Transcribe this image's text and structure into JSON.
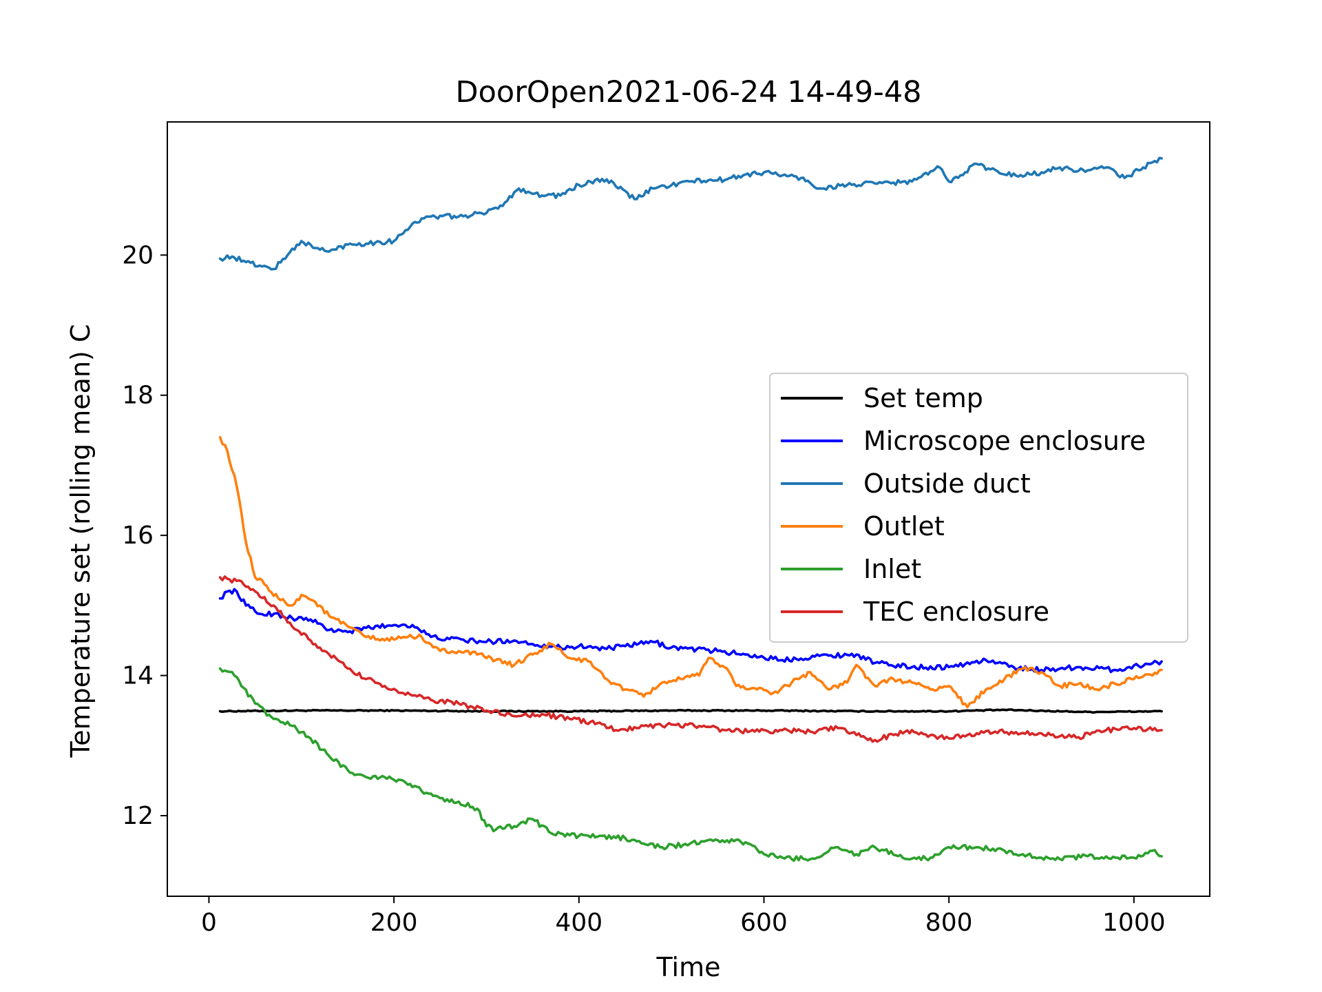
{
  "chart_data": {
    "type": "line",
    "title": "DoorOpen2021-06-24 14-49-48",
    "xlabel": "Time",
    "ylabel": "Temperature set (rolling mean) C",
    "xlim": [
      -45,
      1082
    ],
    "ylim": [
      10.85,
      21.9
    ],
    "xticks": [
      0,
      200,
      400,
      600,
      800,
      1000
    ],
    "yticks": [
      12,
      14,
      16,
      18,
      20
    ],
    "grid": false,
    "legend_position": "center-right",
    "series": [
      {
        "name": "Set temp",
        "color": "#000000",
        "points": [
          [
            12,
            13.49
          ],
          [
            100,
            13.5
          ],
          [
            200,
            13.5
          ],
          [
            300,
            13.49
          ],
          [
            400,
            13.49
          ],
          [
            500,
            13.5
          ],
          [
            600,
            13.5
          ],
          [
            700,
            13.49
          ],
          [
            800,
            13.49
          ],
          [
            860,
            13.51
          ],
          [
            950,
            13.48
          ],
          [
            1030,
            13.49
          ]
        ]
      },
      {
        "name": "Microscope enclosure",
        "color": "#0000ff",
        "points": [
          [
            12,
            15.1
          ],
          [
            20,
            15.2
          ],
          [
            30,
            15.2
          ],
          [
            40,
            15.0
          ],
          [
            55,
            14.88
          ],
          [
            70,
            14.88
          ],
          [
            90,
            14.82
          ],
          [
            110,
            14.8
          ],
          [
            130,
            14.65
          ],
          [
            150,
            14.62
          ],
          [
            170,
            14.68
          ],
          [
            200,
            14.72
          ],
          [
            220,
            14.72
          ],
          [
            240,
            14.55
          ],
          [
            260,
            14.52
          ],
          [
            300,
            14.48
          ],
          [
            330,
            14.5
          ],
          [
            350,
            14.45
          ],
          [
            380,
            14.4
          ],
          [
            400,
            14.42
          ],
          [
            430,
            14.38
          ],
          [
            450,
            14.42
          ],
          [
            480,
            14.48
          ],
          [
            500,
            14.4
          ],
          [
            550,
            14.35
          ],
          [
            580,
            14.3
          ],
          [
            620,
            14.22
          ],
          [
            660,
            14.28
          ],
          [
            700,
            14.3
          ],
          [
            720,
            14.18
          ],
          [
            760,
            14.12
          ],
          [
            800,
            14.12
          ],
          [
            840,
            14.22
          ],
          [
            870,
            14.12
          ],
          [
            900,
            14.08
          ],
          [
            940,
            14.12
          ],
          [
            980,
            14.08
          ],
          [
            1030,
            14.2
          ]
        ]
      },
      {
        "name": "Outside duct",
        "color": "#1f77b4",
        "points": [
          [
            12,
            19.95
          ],
          [
            25,
            19.98
          ],
          [
            40,
            19.9
          ],
          [
            55,
            19.85
          ],
          [
            70,
            19.8
          ],
          [
            85,
            20.0
          ],
          [
            100,
            20.2
          ],
          [
            115,
            20.1
          ],
          [
            130,
            20.05
          ],
          [
            150,
            20.15
          ],
          [
            180,
            20.18
          ],
          [
            200,
            20.2
          ],
          [
            220,
            20.45
          ],
          [
            240,
            20.55
          ],
          [
            270,
            20.55
          ],
          [
            300,
            20.6
          ],
          [
            320,
            20.75
          ],
          [
            335,
            20.95
          ],
          [
            360,
            20.85
          ],
          [
            380,
            20.85
          ],
          [
            400,
            21.0
          ],
          [
            430,
            21.08
          ],
          [
            460,
            20.8
          ],
          [
            480,
            20.95
          ],
          [
            520,
            21.05
          ],
          [
            560,
            21.08
          ],
          [
            580,
            21.15
          ],
          [
            600,
            21.18
          ],
          [
            640,
            21.1
          ],
          [
            660,
            20.95
          ],
          [
            690,
            21.0
          ],
          [
            720,
            21.02
          ],
          [
            760,
            21.05
          ],
          [
            790,
            21.25
          ],
          [
            800,
            21.05
          ],
          [
            830,
            21.3
          ],
          [
            860,
            21.15
          ],
          [
            890,
            21.15
          ],
          [
            920,
            21.25
          ],
          [
            940,
            21.2
          ],
          [
            970,
            21.25
          ],
          [
            990,
            21.1
          ],
          [
            1010,
            21.25
          ],
          [
            1030,
            21.38
          ]
        ]
      },
      {
        "name": "Outlet",
        "color": "#ff7f0e",
        "points": [
          [
            12,
            17.4
          ],
          [
            20,
            17.2
          ],
          [
            30,
            16.7
          ],
          [
            40,
            15.9
          ],
          [
            50,
            15.4
          ],
          [
            60,
            15.3
          ],
          [
            75,
            15.1
          ],
          [
            90,
            15.0
          ],
          [
            100,
            15.15
          ],
          [
            115,
            15.05
          ],
          [
            130,
            14.85
          ],
          [
            150,
            14.7
          ],
          [
            170,
            14.55
          ],
          [
            190,
            14.5
          ],
          [
            210,
            14.55
          ],
          [
            230,
            14.55
          ],
          [
            250,
            14.35
          ],
          [
            270,
            14.35
          ],
          [
            290,
            14.3
          ],
          [
            310,
            14.22
          ],
          [
            330,
            14.15
          ],
          [
            350,
            14.3
          ],
          [
            370,
            14.45
          ],
          [
            390,
            14.25
          ],
          [
            410,
            14.2
          ],
          [
            430,
            13.95
          ],
          [
            450,
            13.8
          ],
          [
            470,
            13.7
          ],
          [
            490,
            13.9
          ],
          [
            510,
            13.95
          ],
          [
            530,
            14.0
          ],
          [
            540,
            14.25
          ],
          [
            560,
            14.1
          ],
          [
            570,
            13.85
          ],
          [
            590,
            13.82
          ],
          [
            610,
            13.75
          ],
          [
            630,
            13.9
          ],
          [
            650,
            14.05
          ],
          [
            670,
            13.8
          ],
          [
            690,
            13.9
          ],
          [
            700,
            14.15
          ],
          [
            720,
            13.85
          ],
          [
            740,
            13.95
          ],
          [
            760,
            13.9
          ],
          [
            780,
            13.8
          ],
          [
            800,
            13.85
          ],
          [
            820,
            13.55
          ],
          [
            840,
            13.8
          ],
          [
            860,
            13.95
          ],
          [
            880,
            14.1
          ],
          [
            900,
            14.05
          ],
          [
            920,
            13.85
          ],
          [
            940,
            13.88
          ],
          [
            960,
            13.8
          ],
          [
            980,
            13.88
          ],
          [
            1000,
            13.95
          ],
          [
            1020,
            14.0
          ],
          [
            1030,
            14.08
          ]
        ]
      },
      {
        "name": "Inlet",
        "color": "#2ca02c",
        "points": [
          [
            12,
            14.1
          ],
          [
            25,
            14.05
          ],
          [
            35,
            13.85
          ],
          [
            50,
            13.6
          ],
          [
            70,
            13.38
          ],
          [
            90,
            13.28
          ],
          [
            110,
            13.1
          ],
          [
            130,
            12.85
          ],
          [
            150,
            12.65
          ],
          [
            170,
            12.55
          ],
          [
            190,
            12.55
          ],
          [
            210,
            12.5
          ],
          [
            230,
            12.35
          ],
          [
            250,
            12.25
          ],
          [
            270,
            12.2
          ],
          [
            290,
            12.1
          ],
          [
            300,
            11.85
          ],
          [
            310,
            11.8
          ],
          [
            330,
            11.85
          ],
          [
            350,
            11.95
          ],
          [
            370,
            11.75
          ],
          [
            390,
            11.72
          ],
          [
            420,
            11.7
          ],
          [
            450,
            11.68
          ],
          [
            470,
            11.6
          ],
          [
            490,
            11.55
          ],
          [
            520,
            11.6
          ],
          [
            550,
            11.65
          ],
          [
            580,
            11.62
          ],
          [
            600,
            11.45
          ],
          [
            620,
            11.4
          ],
          [
            650,
            11.38
          ],
          [
            680,
            11.55
          ],
          [
            700,
            11.45
          ],
          [
            720,
            11.55
          ],
          [
            750,
            11.4
          ],
          [
            780,
            11.4
          ],
          [
            800,
            11.55
          ],
          [
            830,
            11.55
          ],
          [
            860,
            11.5
          ],
          [
            880,
            11.45
          ],
          [
            900,
            11.4
          ],
          [
            920,
            11.38
          ],
          [
            950,
            11.42
          ],
          [
            980,
            11.4
          ],
          [
            1000,
            11.4
          ],
          [
            1020,
            11.5
          ],
          [
            1030,
            11.42
          ]
        ]
      },
      {
        "name": "TEC enclosure",
        "color": "#d62728",
        "points": [
          [
            12,
            15.4
          ],
          [
            30,
            15.35
          ],
          [
            50,
            15.2
          ],
          [
            70,
            15.0
          ],
          [
            90,
            14.7
          ],
          [
            110,
            14.5
          ],
          [
            130,
            14.3
          ],
          [
            150,
            14.1
          ],
          [
            170,
            13.95
          ],
          [
            190,
            13.85
          ],
          [
            210,
            13.75
          ],
          [
            240,
            13.65
          ],
          [
            270,
            13.6
          ],
          [
            300,
            13.5
          ],
          [
            330,
            13.42
          ],
          [
            360,
            13.45
          ],
          [
            390,
            13.38
          ],
          [
            420,
            13.32
          ],
          [
            440,
            13.22
          ],
          [
            470,
            13.28
          ],
          [
            500,
            13.3
          ],
          [
            530,
            13.28
          ],
          [
            560,
            13.22
          ],
          [
            590,
            13.2
          ],
          [
            620,
            13.22
          ],
          [
            650,
            13.2
          ],
          [
            680,
            13.25
          ],
          [
            700,
            13.15
          ],
          [
            720,
            13.08
          ],
          [
            740,
            13.15
          ],
          [
            760,
            13.22
          ],
          [
            780,
            13.15
          ],
          [
            800,
            13.1
          ],
          [
            820,
            13.15
          ],
          [
            850,
            13.2
          ],
          [
            880,
            13.18
          ],
          [
            910,
            13.15
          ],
          [
            940,
            13.12
          ],
          [
            970,
            13.22
          ],
          [
            1000,
            13.25
          ],
          [
            1030,
            13.22
          ]
        ]
      }
    ]
  }
}
